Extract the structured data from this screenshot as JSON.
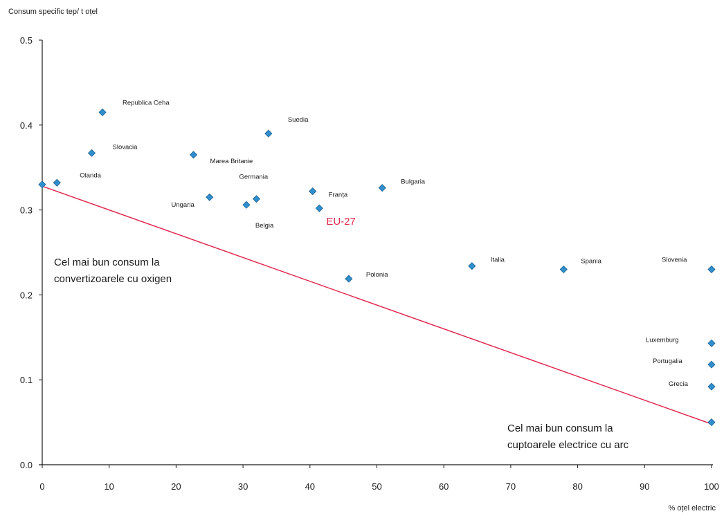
{
  "chart_data": {
    "type": "scatter",
    "ylabel": "Consum specific tep/ t oțel",
    "xlabel": "% oțel electric",
    "xlim": [
      0,
      100
    ],
    "ylim": [
      0,
      0.5
    ],
    "xticks": [
      0,
      10,
      20,
      30,
      40,
      50,
      60,
      70,
      80,
      90,
      100
    ],
    "yticks": [
      "0.0",
      "0.1",
      "0.2",
      "0.3",
      "0.4",
      "0.5"
    ],
    "marker_color": "#2f8fcf",
    "line_color": "#e0294f",
    "highlight_color": "#e0294f",
    "points": [
      {
        "label": "",
        "x": 0,
        "y": 0.33
      },
      {
        "label": "Olanda",
        "x": 2.2,
        "y": 0.332
      },
      {
        "label": "Republica Ceha",
        "x": 9.0,
        "y": 0.415
      },
      {
        "label": "Slovacia",
        "x": 7.4,
        "y": 0.367
      },
      {
        "label": "Marea Britanie",
        "x": 22.6,
        "y": 0.365
      },
      {
        "label": "Suedia",
        "x": 33.8,
        "y": 0.39
      },
      {
        "label": "Ungaria",
        "x": 25.0,
        "y": 0.315
      },
      {
        "label": "Germania",
        "x": 32.0,
        "y": 0.313
      },
      {
        "label": "Belgia",
        "x": 30.5,
        "y": 0.306
      },
      {
        "label": "Franța",
        "x": 40.4,
        "y": 0.322
      },
      {
        "label": "EU-27",
        "x": 41.4,
        "y": 0.302
      },
      {
        "label": "Bulgaria",
        "x": 50.8,
        "y": 0.326
      },
      {
        "label": "Polonia",
        "x": 45.8,
        "y": 0.219
      },
      {
        "label": "Italia",
        "x": 64.2,
        "y": 0.234
      },
      {
        "label": "Spania",
        "x": 77.9,
        "y": 0.23
      },
      {
        "label": "Slovenia",
        "x": 100,
        "y": 0.23
      },
      {
        "label": "Luxemburg",
        "x": 100,
        "y": 0.143
      },
      {
        "label": "Portugalia",
        "x": 100,
        "y": 0.118
      },
      {
        "label": "Grecia",
        "x": 100,
        "y": 0.092
      },
      {
        "label": "",
        "x": 100,
        "y": 0.05
      }
    ],
    "trend_line": {
      "x": [
        0,
        100
      ],
      "y": [
        0.328,
        0.048
      ]
    },
    "annotations": [
      "Cel mai bun consum la convertizoarele cu oxigen",
      "Cel mai bun consum la cuptoarele electrice cu arc"
    ]
  },
  "notes": {
    "left_line1": "Cel mai bun consum la",
    "left_line2": "convertizoarele cu oxigen",
    "right_line1": "Cel mai bun consum la",
    "right_line2": "cuptoarele electrice cu arc"
  }
}
